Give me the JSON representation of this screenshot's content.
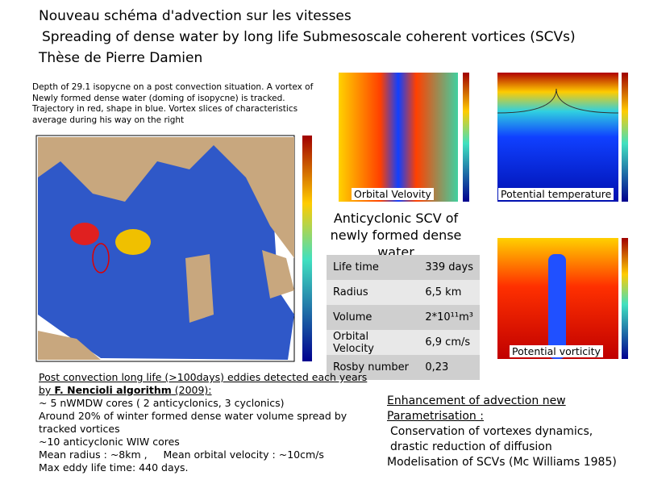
{
  "header": {
    "lines": [
      "Nouveau schéma d'advection sur les vitesses",
      "Spreading of dense water by long life Submesoscale coherent vortices (SCVs)",
      "Thèse de Pierre Damien"
    ]
  },
  "caption": "Depth of 29.1 isopycne on a post convection situation. A vortex of Newly formed dense water (doming of isopycne) is tracked. Trajectory in red, shape in blue. Vortex slices of characteristics average during his way on the right",
  "figures": {
    "orbital": "Orbital Velovity",
    "temperature": "Potential temperature",
    "vorticity": "Potential vorticity"
  },
  "scv": {
    "heading": "Anticyclonic SCV of newly formed dense water",
    "table": {
      "rows": [
        [
          "Life time",
          "339 days"
        ],
        [
          "Radius",
          "6,5 km"
        ],
        [
          "Volume",
          "2*10¹¹m³"
        ],
        [
          "Orbital Velocity",
          "6,9 cm/s"
        ],
        [
          "Rosby number",
          "0,23"
        ]
      ]
    }
  },
  "detection": {
    "intro": [
      "Post convection long life (>100days) eddies detected each years by ",
      "F. Nencioli algorithm",
      " (2009):"
    ],
    "lines": [
      "~ 5 nWMDW cores ( 2 anticyclonics, 3 cyclonics)",
      "Around 20% of winter formed dense water volume spread by tracked vortices",
      "~10 anticyclonic WIW cores",
      "Mean radius : ~8km ,     Mean orbital velocity : ~10cm/s",
      "Max eddy life time: 440 days."
    ]
  },
  "enhancement": {
    "heading": "Enhancement of advection new Parametrisation :",
    "lines": [
      "Conservation of vortexes dynamics, drastic reduction of diffusion",
      "Modelisation of SCVs (Mc Williams 1985)"
    ]
  }
}
